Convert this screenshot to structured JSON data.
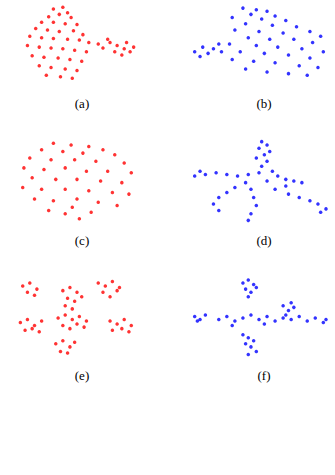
{
  "chart_data": [
    {
      "type": "scatter",
      "title": "(a)",
      "color": "#ff0000",
      "marker": "circle",
      "tick_labels": false,
      "xlim": [
        0,
        100
      ],
      "ylim": [
        0,
        100
      ],
      "x": [
        30,
        38,
        42,
        35,
        26,
        45,
        20,
        30,
        40,
        50,
        15,
        25,
        35,
        47,
        55,
        10,
        20,
        30,
        42,
        52,
        60,
        8,
        18,
        28,
        38,
        48,
        58,
        12,
        22,
        34,
        44,
        54,
        18,
        28,
        40,
        50,
        24,
        36,
        46,
        68,
        72,
        78,
        84,
        90,
        95,
        82,
        88,
        98,
        76,
        92
      ],
      "y": [
        95,
        97,
        90,
        88,
        85,
        84,
        78,
        78,
        76,
        75,
        70,
        68,
        66,
        67,
        62,
        60,
        58,
        57,
        56,
        55,
        52,
        48,
        46,
        45,
        44,
        42,
        40,
        35,
        33,
        32,
        30,
        28,
        22,
        20,
        18,
        16,
        10,
        8,
        6,
        50,
        45,
        52,
        48,
        44,
        40,
        40,
        36,
        46,
        56,
        52
      ]
    },
    {
      "type": "scatter",
      "title": "(b)",
      "color": "#0000ff",
      "marker": "circle",
      "tick_labels": false,
      "xlim": [
        0,
        100
      ],
      "ylim": [
        0,
        100
      ],
      "x": [
        38,
        48,
        56,
        44,
        62,
        30,
        52,
        70,
        40,
        60,
        78,
        88,
        32,
        50,
        68,
        96,
        42,
        58,
        76,
        90,
        28,
        48,
        64,
        82,
        98,
        36,
        54,
        72,
        88,
        30,
        46,
        62,
        80,
        94,
        40,
        56,
        72,
        86,
        2,
        8,
        12,
        16,
        20,
        6,
        22
      ],
      "y": [
        96,
        94,
        92,
        88,
        86,
        84,
        82,
        80,
        76,
        74,
        72,
        66,
        68,
        66,
        64,
        60,
        58,
        56,
        56,
        52,
        50,
        48,
        46,
        44,
        40,
        40,
        38,
        36,
        32,
        30,
        28,
        26,
        22,
        20,
        18,
        14,
        12,
        10,
        40,
        46,
        38,
        44,
        50,
        34,
        40
      ]
    },
    {
      "type": "scatter",
      "title": "(c)",
      "color": "#ff0000",
      "marker": "circle",
      "tick_labels": false,
      "xlim": [
        0,
        100
      ],
      "ylim": [
        0,
        100
      ],
      "x": [
        30,
        45,
        60,
        72,
        20,
        38,
        55,
        82,
        10,
        28,
        48,
        66,
        90,
        5,
        22,
        40,
        58,
        76,
        96,
        12,
        32,
        50,
        70,
        88,
        4,
        20,
        40,
        60,
        80,
        94,
        14,
        30,
        50,
        68,
        84,
        26,
        40,
        52,
        62,
        46
      ],
      "y": [
        96,
        94,
        92,
        88,
        88,
        86,
        84,
        82,
        78,
        76,
        76,
        74,
        72,
        66,
        64,
        66,
        62,
        62,
        60,
        54,
        52,
        52,
        50,
        48,
        42,
        40,
        40,
        38,
        36,
        34,
        28,
        26,
        28,
        24,
        20,
        14,
        10,
        4,
        12,
        18
      ]
    },
    {
      "type": "scatter",
      "title": "(d)",
      "color": "#0000ff",
      "marker": "circle",
      "tick_labels": false,
      "xlim": [
        0,
        100
      ],
      "ylim": [
        0,
        100
      ],
      "x": [
        52,
        56,
        50,
        58,
        54,
        48,
        56,
        52,
        60,
        50,
        42,
        34,
        26,
        18,
        10,
        2,
        6,
        64,
        70,
        76,
        82,
        70,
        40,
        32,
        26,
        20,
        16,
        20,
        44,
        46,
        48,
        44,
        42,
        62,
        72,
        80,
        88,
        94,
        100,
        96,
        56
      ],
      "y": [
        98,
        94,
        90,
        86,
        82,
        78,
        74,
        68,
        62,
        60,
        58,
        56,
        58,
        60,
        58,
        56,
        62,
        56,
        52,
        50,
        48,
        44,
        48,
        42,
        36,
        30,
        22,
        14,
        40,
        30,
        20,
        10,
        2,
        40,
        34,
        30,
        26,
        22,
        16,
        12,
        50
      ]
    },
    {
      "type": "scatter",
      "title": "(e)",
      "color": "#ff0000",
      "marker": "circle",
      "tick_labels": false,
      "xlim": [
        0,
        100
      ],
      "ylim": [
        0,
        100
      ],
      "x": [
        4,
        10,
        16,
        8,
        14,
        38,
        44,
        50,
        42,
        48,
        54,
        40,
        46,
        68,
        74,
        80,
        86,
        72,
        78,
        84,
        34,
        40,
        46,
        52,
        58,
        38,
        44,
        50,
        56,
        2,
        8,
        14,
        20,
        6,
        12,
        18,
        32,
        38,
        44,
        48,
        36,
        42,
        78,
        84,
        90,
        96,
        80,
        88,
        94
      ],
      "y": [
        92,
        96,
        88,
        84,
        80,
        86,
        90,
        84,
        76,
        72,
        78,
        66,
        62,
        96,
        92,
        98,
        90,
        84,
        78,
        86,
        50,
        54,
        48,
        52,
        46,
        40,
        36,
        42,
        38,
        44,
        48,
        40,
        46,
        34,
        36,
        32,
        16,
        20,
        12,
        18,
        6,
        4,
        46,
        42,
        48,
        40,
        34,
        36,
        32
      ]
    },
    {
      "type": "scatter",
      "title": "(f)",
      "color": "#0000ff",
      "marker": "circle",
      "tick_labels": false,
      "xlim": [
        0,
        100
      ],
      "ylim": [
        0,
        100
      ],
      "x": [
        38,
        42,
        46,
        40,
        44,
        48,
        42,
        20,
        26,
        32,
        38,
        44,
        50,
        56,
        62,
        68,
        74,
        80,
        86,
        92,
        98,
        100,
        30,
        54,
        70,
        2,
        6,
        10,
        4,
        38,
        42,
        46,
        40,
        44,
        48,
        42,
        72,
        76,
        68,
        74
      ],
      "y": [
        96,
        100,
        94,
        88,
        84,
        90,
        78,
        48,
        52,
        46,
        50,
        54,
        48,
        52,
        46,
        50,
        48,
        52,
        46,
        50,
        44,
        48,
        40,
        42,
        54,
        52,
        48,
        54,
        46,
        28,
        24,
        20,
        16,
        12,
        6,
        2,
        60,
        64,
        66,
        70
      ]
    }
  ]
}
